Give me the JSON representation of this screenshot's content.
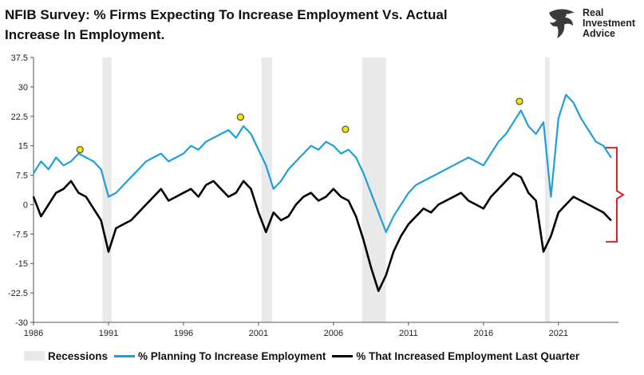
{
  "title_line1": "NFIB Survey:  % Firms Expecting To Increase Employment Vs. Actual",
  "title_line2": "Increase In Employment.",
  "brand": {
    "line1": "Real",
    "line2": "Investment",
    "line3": "Advice"
  },
  "legend": {
    "recessions": "Recessions",
    "planning": "% Planning To Increase Employment",
    "increased": "% That Increased Employment Last Quarter"
  },
  "colors": {
    "planning": "#1e9fd8",
    "increased": "#000000",
    "recession": "#e9e9e9",
    "marker": "#f2e600",
    "bracket": "#d9232d"
  },
  "chart_data": {
    "type": "line",
    "title": "NFIB Survey:  % Firms Expecting To Increase Employment Vs. Actual Increase In Employment.",
    "xlabel": "",
    "ylabel": "",
    "xlim": [
      1986,
      2025
    ],
    "ylim": [
      -30,
      37.5
    ],
    "x_ticks": [
      "1986",
      "1991",
      "1996",
      "2001",
      "2006",
      "2011",
      "2016",
      "2021"
    ],
    "y_ticks": [
      "37.5",
      "30",
      "22.5",
      "15",
      "7.5",
      "0",
      "-7.5",
      "-15",
      "-22.5",
      "-30"
    ],
    "recessions": [
      [
        1990.6,
        1991.2
      ],
      [
        2001.2,
        2001.9
      ],
      [
        2007.9,
        2009.5
      ],
      [
        2020.1,
        2020.4
      ]
    ],
    "grid": false,
    "legend_position": "bottom",
    "series": [
      {
        "name": "% Planning To Increase Employment",
        "x": [
          1986,
          1986.5,
          1987,
          1987.5,
          1988,
          1988.5,
          1989,
          1989.5,
          1990,
          1990.5,
          1991,
          1991.5,
          1992,
          1992.5,
          1993,
          1993.5,
          1994,
          1994.5,
          1995,
          1995.5,
          1996,
          1996.5,
          1997,
          1997.5,
          1998,
          1998.5,
          1999,
          1999.5,
          2000,
          2000.5,
          2001,
          2001.5,
          2002,
          2002.5,
          2003,
          2003.5,
          2004,
          2004.5,
          2005,
          2005.5,
          2006,
          2006.5,
          2007,
          2007.5,
          2008,
          2008.5,
          2009,
          2009.5,
          2010,
          2010.5,
          2011,
          2011.5,
          2012,
          2012.5,
          2013,
          2013.5,
          2014,
          2014.5,
          2015,
          2015.5,
          2016,
          2016.5,
          2017,
          2017.5,
          2018,
          2018.5,
          2019,
          2019.5,
          2020,
          2020.5,
          2021,
          2021.5,
          2022,
          2022.5,
          2023,
          2023.5,
          2024,
          2024.5
        ],
        "values": [
          8,
          11,
          9,
          12,
          10,
          11,
          13,
          12,
          11,
          9,
          2,
          3,
          5,
          7,
          9,
          11,
          12,
          13,
          11,
          12,
          13,
          15,
          14,
          16,
          17,
          18,
          19,
          17,
          20,
          18,
          14,
          10,
          4,
          6,
          9,
          11,
          13,
          15,
          14,
          16,
          15,
          13,
          14,
          12,
          8,
          3,
          -2,
          -7,
          -3,
          0,
          3,
          5,
          6,
          7,
          8,
          9,
          10,
          11,
          12,
          11,
          10,
          13,
          16,
          18,
          21,
          24,
          20,
          18,
          21,
          2,
          22,
          28,
          26,
          22,
          19,
          16,
          15,
          12
        ]
      },
      {
        "name": "% That Increased Employment Last Quarter",
        "x": [
          1986,
          1986.5,
          1987,
          1987.5,
          1988,
          1988.5,
          1989,
          1989.5,
          1990,
          1990.5,
          1991,
          1991.5,
          1992,
          1992.5,
          1993,
          1993.5,
          1994,
          1994.5,
          1995,
          1995.5,
          1996,
          1996.5,
          1997,
          1997.5,
          1998,
          1998.5,
          1999,
          1999.5,
          2000,
          2000.5,
          2001,
          2001.5,
          2002,
          2002.5,
          2003,
          2003.5,
          2004,
          2004.5,
          2005,
          2005.5,
          2006,
          2006.5,
          2007,
          2007.5,
          2008,
          2008.5,
          2009,
          2009.5,
          2010,
          2010.5,
          2011,
          2011.5,
          2012,
          2012.5,
          2013,
          2013.5,
          2014,
          2014.5,
          2015,
          2015.5,
          2016,
          2016.5,
          2017,
          2017.5,
          2018,
          2018.5,
          2019,
          2019.5,
          2020,
          2020.5,
          2021,
          2021.5,
          2022,
          2022.5,
          2023,
          2023.5,
          2024,
          2024.5
        ],
        "values": [
          2,
          -3,
          0,
          3,
          4,
          6,
          3,
          2,
          -1,
          -4,
          -12,
          -6,
          -5,
          -4,
          -2,
          0,
          2,
          4,
          1,
          2,
          3,
          4,
          2,
          5,
          6,
          4,
          2,
          3,
          6,
          4,
          -2,
          -7,
          -2,
          -4,
          -3,
          0,
          2,
          3,
          1,
          2,
          4,
          2,
          1,
          -3,
          -9,
          -16,
          -22,
          -18,
          -12,
          -8,
          -5,
          -3,
          -1,
          -2,
          0,
          1,
          2,
          3,
          1,
          0,
          -1,
          2,
          4,
          6,
          8,
          7,
          3,
          1,
          -12,
          -8,
          -2,
          0,
          2,
          1,
          0,
          -1,
          -2,
          -4
        ]
      }
    ],
    "annotations": [
      {
        "type": "marker",
        "x": 1989.1,
        "y": 14
      },
      {
        "type": "marker",
        "x": 1999.8,
        "y": 22.3
      },
      {
        "type": "marker",
        "x": 2006.8,
        "y": 19.2
      },
      {
        "type": "marker",
        "x": 2018.4,
        "y": 26.3
      }
    ]
  }
}
